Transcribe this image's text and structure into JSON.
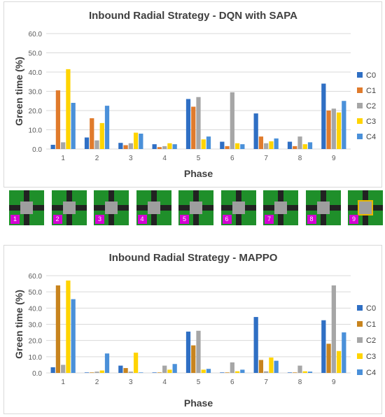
{
  "chart_data": [
    {
      "type": "bar",
      "title": "Inbound Radial Strategy - DQN with SAPA",
      "xlabel": "Phase",
      "ylabel": "Green time (%)",
      "ylim": [
        0,
        60
      ],
      "yticks": [
        "0.0",
        "10.0",
        "20.0",
        "30.0",
        "40.0",
        "50.0",
        "60.0"
      ],
      "grid": true,
      "legend": "right",
      "categories": [
        "1",
        "2",
        "3",
        "4",
        "5",
        "6",
        "7",
        "8",
        "9"
      ],
      "series": [
        {
          "name": "C0",
          "color": "#2f6fc4",
          "values": [
            2.2,
            6.0,
            3.2,
            2.5,
            26.0,
            3.8,
            18.5,
            3.8,
            34.0
          ]
        },
        {
          "name": "C1",
          "color": "#e07b2c",
          "values": [
            30.5,
            16.0,
            2.0,
            1.0,
            22.0,
            1.5,
            6.5,
            1.5,
            20.0
          ]
        },
        {
          "name": "C2",
          "color": "#a6a6a6",
          "values": [
            3.5,
            4.5,
            3.0,
            1.5,
            27.0,
            29.5,
            3.0,
            6.5,
            21.0
          ]
        },
        {
          "name": "C3",
          "color": "#ffd400",
          "values": [
            41.5,
            13.5,
            8.5,
            3.0,
            5.0,
            3.0,
            4.0,
            2.5,
            19.0
          ]
        },
        {
          "name": "C4",
          "color": "#4a90d9",
          "values": [
            24.0,
            22.5,
            8.0,
            2.5,
            6.5,
            2.5,
            5.5,
            3.5,
            25.0
          ]
        }
      ]
    },
    {
      "type": "bar",
      "title": "Inbound Radial Strategy - MAPPO",
      "xlabel": "Phase",
      "ylabel": "Green time (%)",
      "ylim": [
        0,
        60
      ],
      "yticks": [
        "0.0",
        "10.0",
        "20.0",
        "30.0",
        "40.0",
        "50.0",
        "60.0"
      ],
      "grid": true,
      "legend": "right",
      "categories": [
        "1",
        "2",
        "3",
        "4",
        "5",
        "6",
        "7",
        "8",
        "9"
      ],
      "series": [
        {
          "name": "C0",
          "color": "#2f6fc4",
          "values": [
            3.5,
            0.3,
            4.5,
            0.3,
            25.5,
            0.3,
            34.5,
            0.3,
            32.5
          ]
        },
        {
          "name": "C1",
          "color": "#c8841e",
          "values": [
            54.0,
            0.3,
            3.0,
            0.3,
            17.0,
            0.3,
            8.0,
            0.3,
            18.0
          ]
        },
        {
          "name": "C2",
          "color": "#a6a6a6",
          "values": [
            5.0,
            0.8,
            0.8,
            4.5,
            26.0,
            6.5,
            1.0,
            4.5,
            54.0
          ]
        },
        {
          "name": "C3",
          "color": "#ffd400",
          "values": [
            57.0,
            1.5,
            12.5,
            2.0,
            2.0,
            1.0,
            9.5,
            1.0,
            13.5
          ]
        },
        {
          "name": "C4",
          "color": "#4a90d9",
          "values": [
            45.5,
            12.0,
            0.3,
            5.5,
            2.5,
            2.0,
            7.5,
            0.8,
            25.0
          ]
        }
      ]
    }
  ],
  "phase_strip": [
    {
      "label": "1",
      "orientation": "h"
    },
    {
      "label": "2",
      "orientation": "v"
    },
    {
      "label": "3",
      "orientation": "h"
    },
    {
      "label": "4",
      "orientation": "v"
    },
    {
      "label": "5",
      "orientation": "h"
    },
    {
      "label": "6",
      "orientation": "v"
    },
    {
      "label": "7",
      "orientation": "h"
    },
    {
      "label": "8",
      "orientation": "v"
    },
    {
      "label": "9",
      "orientation": "both"
    }
  ]
}
